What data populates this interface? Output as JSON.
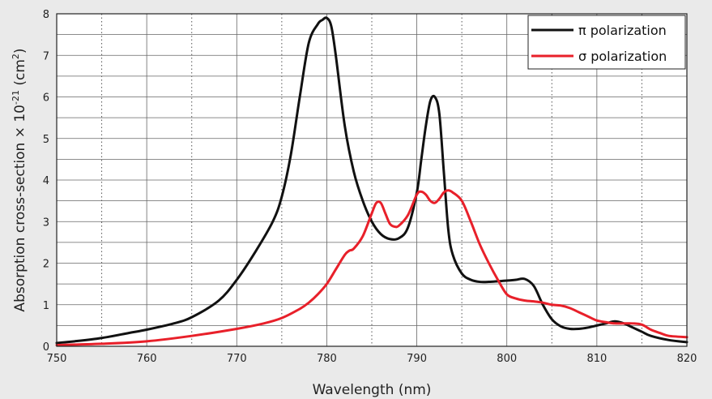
{
  "chart_data": {
    "type": "line",
    "xlabel": "Wavelength (nm)",
    "ylabel_main": "Absorption cross-section × 10",
    "ylabel_exp": "-21",
    "ylabel_unit_open": " (cm",
    "ylabel_unit_exp": "2",
    "ylabel_unit_close": ")",
    "xlim": [
      750,
      820
    ],
    "ylim": [
      0,
      8
    ],
    "x_ticks": [
      750,
      760,
      770,
      780,
      790,
      800,
      810,
      820
    ],
    "y_ticks": [
      0,
      1,
      2,
      3,
      4,
      5,
      6,
      7,
      8
    ],
    "grid": true,
    "legend_position": "top-right",
    "series": [
      {
        "name": "π polarization",
        "color": "#111111",
        "x": [
          750,
          752,
          755,
          758,
          760,
          763,
          765,
          768,
          770,
          772,
          774,
          775,
          776,
          777,
          778,
          779,
          779.5,
          780,
          780.5,
          781,
          782,
          783,
          784,
          785,
          786,
          787,
          788,
          789,
          790,
          790.5,
          791,
          791.5,
          792,
          792.5,
          793,
          793.5,
          794,
          795,
          796,
          797,
          798,
          800,
          801,
          802,
          803,
          804,
          805,
          806,
          807,
          808,
          809,
          810,
          811,
          812,
          813,
          814,
          815,
          816,
          818,
          820
        ],
        "y": [
          0.08,
          0.12,
          0.2,
          0.32,
          0.4,
          0.55,
          0.7,
          1.1,
          1.6,
          2.25,
          3.0,
          3.6,
          4.6,
          6.0,
          7.3,
          7.75,
          7.85,
          7.9,
          7.7,
          7.0,
          5.3,
          4.2,
          3.5,
          3.0,
          2.7,
          2.58,
          2.6,
          2.85,
          3.7,
          4.5,
          5.3,
          5.9,
          6.0,
          5.6,
          4.2,
          2.8,
          2.2,
          1.75,
          1.6,
          1.55,
          1.55,
          1.58,
          1.6,
          1.62,
          1.45,
          1.0,
          0.65,
          0.48,
          0.42,
          0.42,
          0.45,
          0.5,
          0.55,
          0.6,
          0.55,
          0.45,
          0.35,
          0.25,
          0.15,
          0.1
        ]
      },
      {
        "name": "σ polarization",
        "color": "#e8202a",
        "x": [
          750,
          755,
          760,
          765,
          770,
          773,
          775,
          777,
          778,
          779,
          780,
          781,
          782,
          782.5,
          783,
          784,
          785,
          785.5,
          786,
          786.5,
          787,
          787.5,
          788,
          789,
          790,
          790.5,
          791,
          791.5,
          792,
          792.5,
          793,
          793.5,
          794,
          795,
          796,
          797,
          798,
          799,
          800,
          801,
          802,
          803,
          804,
          805,
          806,
          807,
          808,
          809,
          810,
          811,
          812,
          813,
          814,
          815,
          816,
          817,
          818,
          820
        ],
        "y": [
          0.03,
          0.06,
          0.12,
          0.25,
          0.42,
          0.55,
          0.68,
          0.9,
          1.05,
          1.25,
          1.5,
          1.85,
          2.2,
          2.3,
          2.35,
          2.65,
          3.2,
          3.45,
          3.45,
          3.2,
          2.95,
          2.88,
          2.9,
          3.15,
          3.65,
          3.72,
          3.65,
          3.5,
          3.45,
          3.55,
          3.7,
          3.75,
          3.7,
          3.5,
          3.0,
          2.45,
          2.0,
          1.6,
          1.25,
          1.15,
          1.1,
          1.08,
          1.05,
          1.0,
          0.98,
          0.92,
          0.82,
          0.72,
          0.62,
          0.58,
          0.55,
          0.55,
          0.55,
          0.52,
          0.4,
          0.32,
          0.25,
          0.22
        ]
      }
    ]
  }
}
